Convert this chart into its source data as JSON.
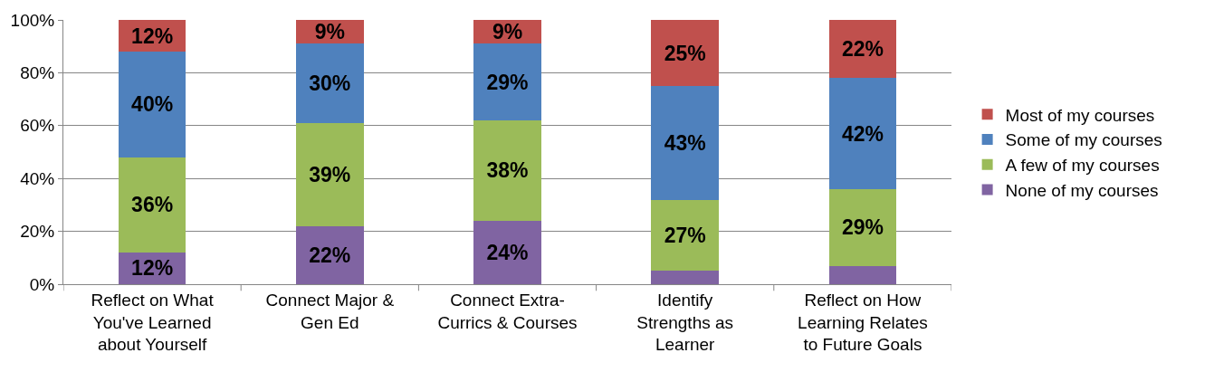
{
  "chart_data": {
    "type": "bar",
    "stacked": true,
    "categories": [
      "Reflect on What You've Learned about Yourself",
      "Connect Major & Gen Ed",
      "Connect Extra-Currics & Courses",
      "Identify Strengths as Learner",
      "Reflect on How Learning Relates to Future Goals"
    ],
    "series": [
      {
        "name": "None of my courses",
        "color": "#8064a2",
        "values": [
          12,
          22,
          24,
          5,
          7
        ],
        "value_labels": [
          "12%",
          "22%",
          "24%",
          null,
          null
        ]
      },
      {
        "name": "A few of my courses",
        "color": "#9bbb59",
        "values": [
          36,
          39,
          38,
          27,
          29
        ],
        "value_labels": [
          "36%",
          "39%",
          "38%",
          "27%",
          "29%"
        ]
      },
      {
        "name": "Some of my courses",
        "color": "#4f81bd",
        "values": [
          40,
          30,
          29,
          43,
          42
        ],
        "value_labels": [
          "40%",
          "30%",
          "29%",
          "43%",
          "42%"
        ]
      },
      {
        "name": "Most of my courses",
        "color": "#c0504d",
        "values": [
          12,
          9,
          9,
          25,
          22
        ],
        "value_labels": [
          "12%",
          "9%",
          "9%",
          "25%",
          "22%"
        ]
      }
    ],
    "ylim": [
      0,
      100
    ],
    "yticks": [
      {
        "value": 0,
        "label": "0%"
      },
      {
        "value": 20,
        "label": "20%"
      },
      {
        "value": 40,
        "label": "40%"
      },
      {
        "value": 60,
        "label": "60%"
      },
      {
        "value": 80,
        "label": "80%"
      },
      {
        "value": 100,
        "label": "100%"
      }
    ],
    "grid": "y",
    "legend": "right"
  }
}
